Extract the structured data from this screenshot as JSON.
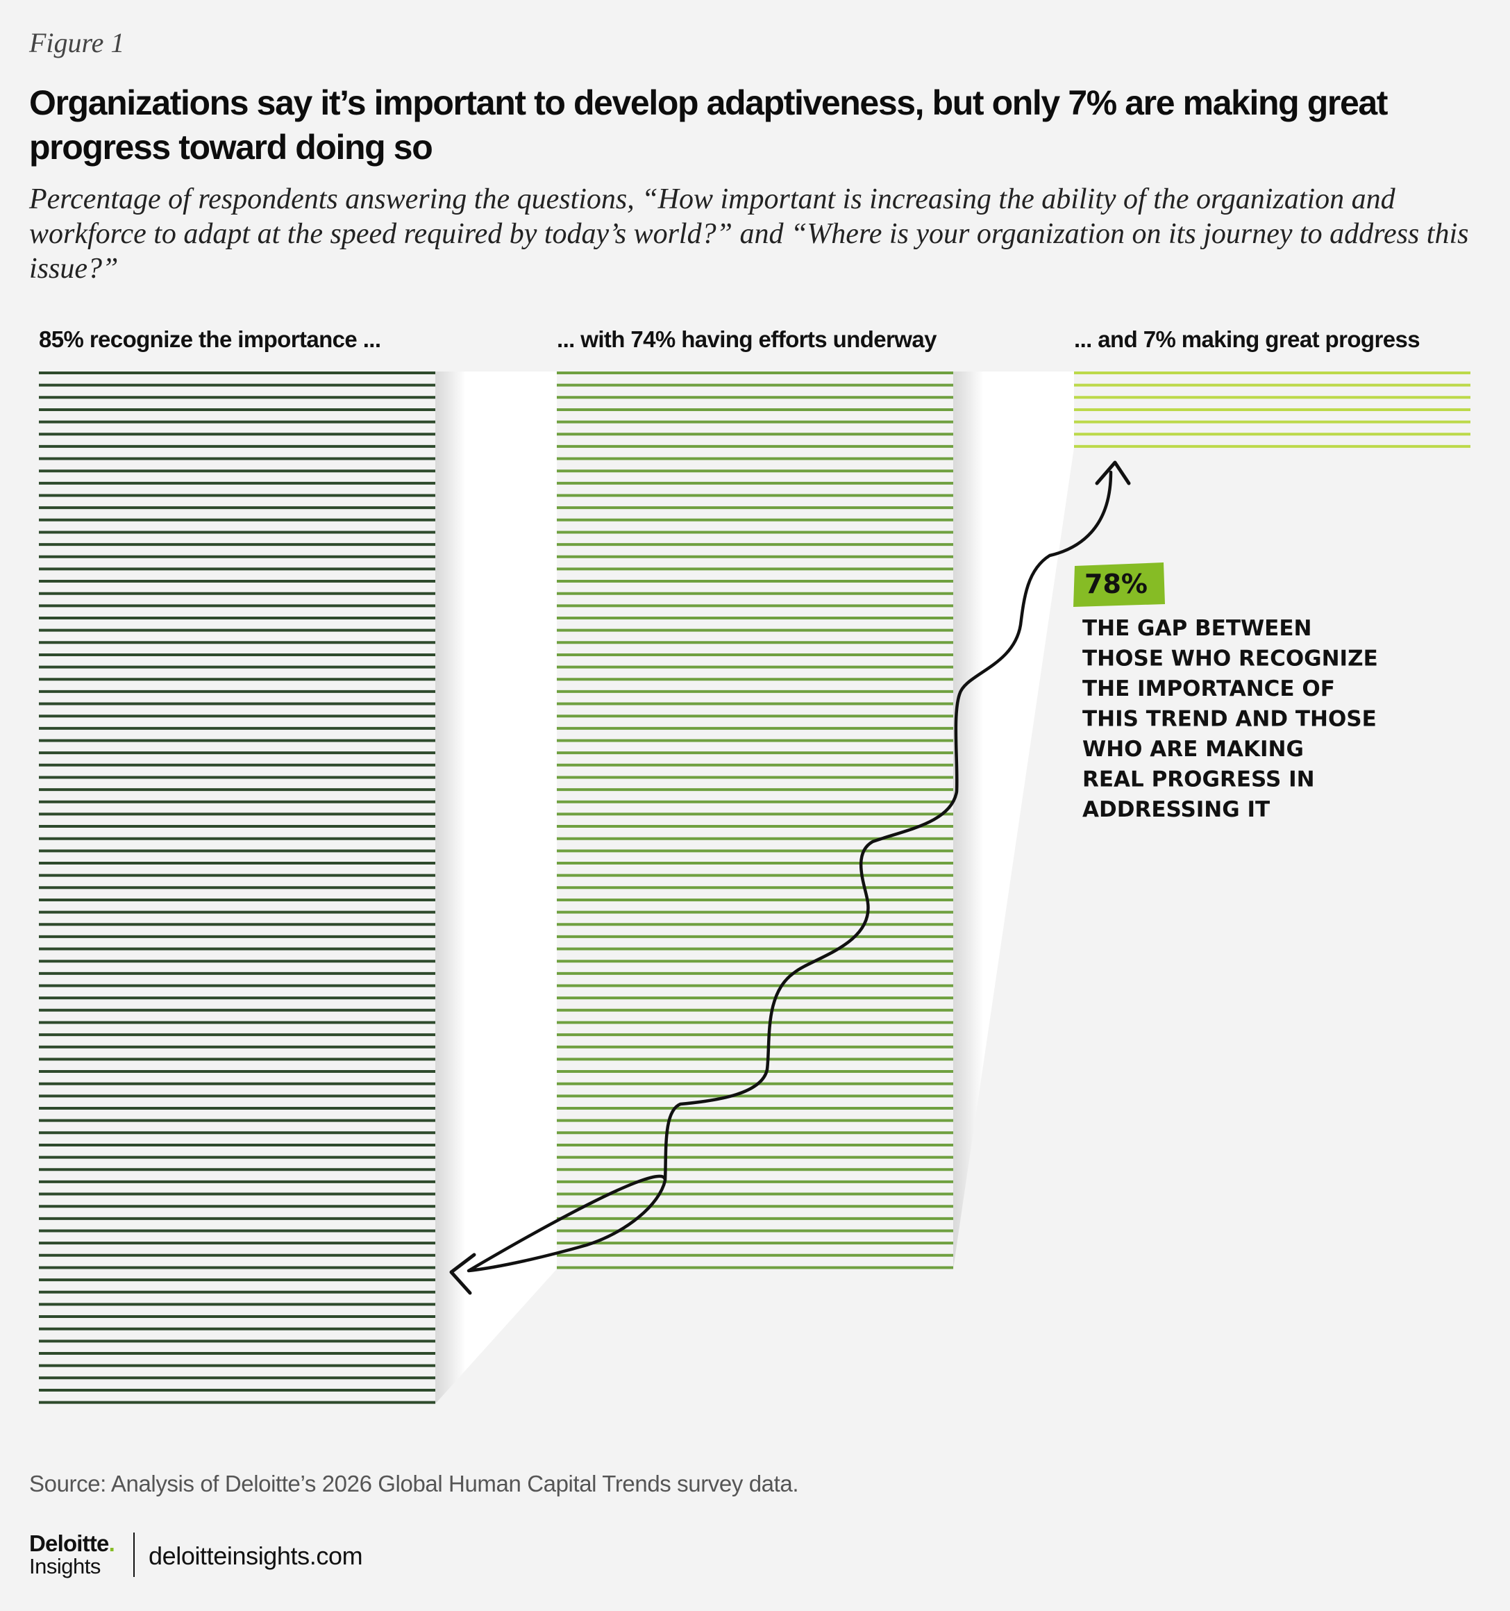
{
  "figure_label": "Figure 1",
  "title": "Organizations say it’s important to develop adaptiveness, but only 7% are making great progress toward doing so",
  "subtitle": "Percentage of respondents answering the questions, “How important is increasing the ability of the organization and workforce to adapt at the speed required by today’s world?” and “Where is your organization on its journey to address this issue?”",
  "chart_data": {
    "type": "bar",
    "orientation": "vertical-stacked-lines",
    "categories": [
      "85% recognize the importance ...",
      "... with 74% having efforts underway",
      "... and 7% making great progress"
    ],
    "values": [
      85,
      74,
      7
    ],
    "unit": "%",
    "colors": [
      "#2e4a2c",
      "#6fa040",
      "#bcd94a"
    ],
    "annotation": {
      "badge": "78%",
      "badge_color": "#86bc25",
      "lines": [
        "THE GAP BETWEEN",
        "THOSE WHO RECOGNIZE",
        "THE IMPORTANCE OF",
        "THIS TREND AND THOSE",
        "WHO ARE MAKING",
        "REAL PROGRESS IN",
        "ADDRESSING IT"
      ]
    }
  },
  "source": "Source: Analysis of Deloitte’s 2026 Global Human Capital Trends survey data.",
  "logo": {
    "brand": "Deloitte",
    "dot": ".",
    "sub": "Insights"
  },
  "site": "deloitteinsights.com"
}
